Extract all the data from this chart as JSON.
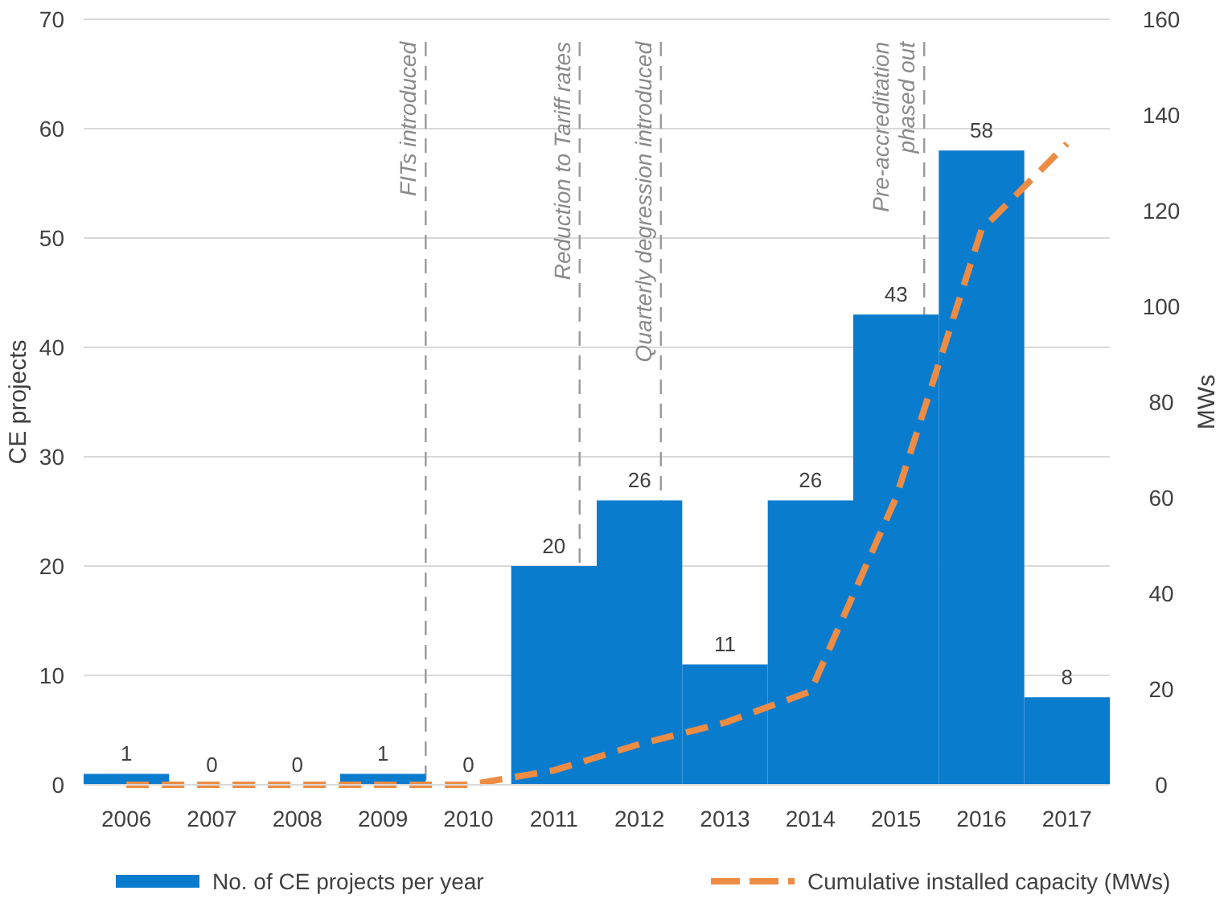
{
  "chart_data": {
    "type": "bar",
    "xlabel": null,
    "ylabel": "CE projects",
    "y2label": "MWs",
    "x": [
      2006,
      2007,
      2008,
      2009,
      2010,
      2011,
      2012,
      2013,
      2014,
      2015,
      2016,
      2017
    ],
    "xlim": [
      2005.5,
      2017.5
    ],
    "xticks": [
      2006,
      2007,
      2008,
      2009,
      2010,
      2011,
      2012,
      2013,
      2014,
      2015,
      2016,
      2017
    ],
    "ylim": [
      0,
      70
    ],
    "yticks": [
      0,
      10,
      20,
      30,
      40,
      50,
      60,
      70
    ],
    "y2lim": [
      0,
      160
    ],
    "y2ticks": [
      0,
      20,
      40,
      60,
      80,
      100,
      120,
      140,
      160
    ],
    "series": [
      {
        "name": "No. of CE projects per year",
        "color": "#0a7cce",
        "values": [
          1,
          0,
          0,
          1,
          0,
          20,
          26,
          11,
          26,
          43,
          58,
          8
        ],
        "value_labels": [
          "1",
          "0",
          "0",
          "1",
          "0",
          "20",
          "26",
          "11",
          "26",
          "43",
          "58",
          "8"
        ]
      },
      {
        "name": "Cumulative installed capacity (MWs)",
        "type": "line",
        "axis": "y2",
        "color": "#ee8c43",
        "line_style": "dashed",
        "values": [
          0,
          0,
          0,
          0,
          0,
          3,
          8.5,
          13,
          19.5,
          60,
          116,
          134
        ]
      }
    ],
    "grid": "y",
    "legend": "bottom",
    "marker": "none",
    "ref_lines": [
      {
        "axis": "x",
        "value": 2009.5,
        "label": "FITs introduced",
        "color": "#9a9a9a",
        "line_style": "dashed"
      },
      {
        "axis": "x",
        "value": 2011.3,
        "label": "Reduction to Tariff rates",
        "color": "#9a9a9a",
        "line_style": "dashed"
      },
      {
        "axis": "x",
        "value": 2012.25,
        "label": "Quarterly degression introduced",
        "color": "#9a9a9a",
        "line_style": "dashed"
      },
      {
        "axis": "x",
        "value": 2015.33,
        "label": "Pre-accreditation\nphased out",
        "color": "#9a9a9a",
        "line_style": "dashed"
      }
    ]
  }
}
